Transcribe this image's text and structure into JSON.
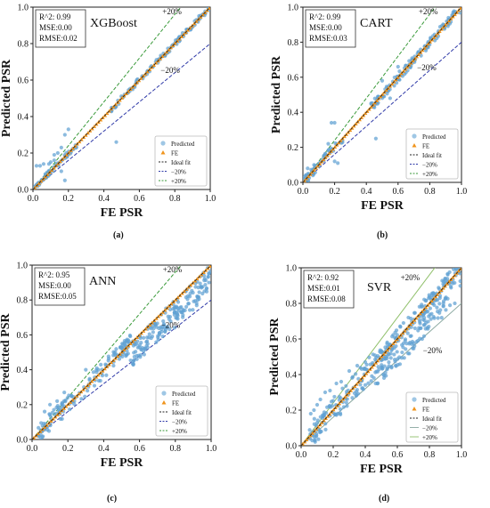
{
  "chart_data": [
    {
      "type": "scatter",
      "model": "XGBoost",
      "caption": "(a)",
      "stats": [
        "R^2: 0.99",
        "MSE:0.00",
        "RMSE:0.02"
      ],
      "xlabel": "FE PSR",
      "ylabel": "Predicted PSR",
      "xlim": [
        0,
        1
      ],
      "ylim": [
        0,
        1
      ],
      "xticks": [
        "0.0",
        "0.2",
        "0.4",
        "0.6",
        "0.8",
        "1.0"
      ],
      "yticks": [
        "0.0",
        "0.2",
        "0.4",
        "0.6",
        "0.8",
        "1.0"
      ],
      "band_labels": {
        "plus": "+20%",
        "minus": "−20%"
      },
      "legend": [
        "Predicted",
        "FE",
        "Ideal fit",
        "−20%",
        "+20%"
      ],
      "legend_position": "bottom-right",
      "grid": false,
      "spread": 0.015,
      "outliers": [
        [
          0.02,
          0.13
        ],
        [
          0.04,
          0.13
        ],
        [
          0.06,
          0.14
        ],
        [
          0.09,
          0.14
        ],
        [
          0.12,
          0.16
        ],
        [
          0.14,
          0.2
        ],
        [
          0.16,
          0.23
        ],
        [
          0.18,
          0.3
        ],
        [
          0.2,
          0.33
        ],
        [
          0.16,
          0.1
        ],
        [
          0.18,
          0.05
        ],
        [
          0.12,
          0.19
        ],
        [
          0.1,
          0.15
        ],
        [
          0.47,
          0.26
        ]
      ],
      "ranges": [
        [
          0.0,
          0.25,
          55
        ],
        [
          0.43,
          1.0,
          110
        ]
      ],
      "seed": 11
    },
    {
      "type": "scatter",
      "model": "CART",
      "caption": "(b)",
      "stats": [
        "R^2: 0.99",
        "MSE:0.00",
        "RMSE:0.03"
      ],
      "xlabel": "FE PSR",
      "ylabel": "Predicted PSR",
      "xlim": [
        0,
        1
      ],
      "ylim": [
        0,
        1
      ],
      "xticks": [
        "0.0",
        "0.2",
        "0.4",
        "0.6",
        "0.8",
        "1.0"
      ],
      "yticks": [
        "0.0",
        "0.2",
        "0.4",
        "0.6",
        "0.8",
        "1.0"
      ],
      "band_labels": {
        "plus": "+20%",
        "minus": "−20%"
      },
      "legend": [
        "Predicted",
        "FE",
        "Ideal fit",
        "−20%",
        "+20%"
      ],
      "legend_position": "bottom-right",
      "grid": false,
      "spread": 0.025,
      "outliers": [
        [
          0.18,
          0.34
        ],
        [
          0.2,
          0.34
        ],
        [
          0.16,
          0.22
        ],
        [
          0.2,
          0.12
        ],
        [
          0.22,
          0.11
        ],
        [
          0.46,
          0.25
        ],
        [
          0.5,
          0.58
        ],
        [
          0.6,
          0.66
        ],
        [
          0.55,
          0.48
        ],
        [
          0.07,
          0.1
        ],
        [
          0.03,
          0.08
        ]
      ],
      "ranges": [
        [
          0.0,
          0.25,
          55
        ],
        [
          0.43,
          1.0,
          120
        ]
      ],
      "seed": 23
    },
    {
      "type": "scatter",
      "model": "ANN",
      "caption": "(c)",
      "stats": [
        "R^2: 0.95",
        "MSE:0.00",
        "RMSE:0.05"
      ],
      "xlabel": "FE PSR",
      "ylabel": "Predicted PSR",
      "xlim": [
        0,
        1
      ],
      "ylim": [
        0,
        1
      ],
      "xticks": [
        "0.0",
        "0.2",
        "0.4",
        "0.6",
        "0.8",
        "1.0"
      ],
      "yticks": [
        "0.0",
        "0.2",
        "0.4",
        "0.6",
        "0.8",
        "1.0"
      ],
      "band_labels": {
        "plus": "+20%",
        "minus": "−20%"
      },
      "legend": [
        "Predicted",
        "FE",
        "Ideal fit",
        "−20%",
        "+20%"
      ],
      "legend_position": "bottom-right",
      "grid": false,
      "spread": 0.05,
      "outliers": [
        [
          0.07,
          0.16
        ],
        [
          0.1,
          0.2
        ],
        [
          0.14,
          0.22
        ],
        [
          0.18,
          0.27
        ],
        [
          0.22,
          0.25
        ],
        [
          0.3,
          0.4
        ],
        [
          0.37,
          0.4
        ]
      ],
      "ranges": [
        [
          0.03,
          0.45,
          90
        ],
        [
          0.45,
          1.0,
          230
        ]
      ],
      "seed": 37
    },
    {
      "type": "scatter",
      "model": "SVR",
      "caption": "(d)",
      "stats": [
        "R^2: 0.92",
        "MSE:0.01",
        "RMSE:0.08"
      ],
      "xlabel": "FE PSR",
      "ylabel": "Predicted PSR",
      "xlim": [
        0,
        1
      ],
      "ylim": [
        0,
        1
      ],
      "xticks": [
        "0.0",
        "0.2",
        "0.4",
        "0.6",
        "0.8",
        "1.0"
      ],
      "yticks": [
        "0.0",
        "0.2",
        "0.4",
        "0.6",
        "0.8",
        "1.0"
      ],
      "band_labels": {
        "plus": "+20%",
        "minus": "−20%"
      },
      "legend": [
        "Predicted",
        "FE",
        "Ideal fit",
        "−20%",
        "+20%"
      ],
      "legend_position": "bottom-right",
      "grid": false,
      "spread": 0.075,
      "outliers": [
        [
          0.06,
          0.18
        ],
        [
          0.08,
          0.2
        ],
        [
          0.1,
          0.23
        ],
        [
          0.12,
          0.26
        ],
        [
          0.15,
          0.3
        ],
        [
          0.18,
          0.31
        ],
        [
          0.22,
          0.35
        ],
        [
          0.25,
          0.36
        ],
        [
          0.3,
          0.42
        ],
        [
          0.35,
          0.45
        ],
        [
          0.4,
          0.47
        ]
      ],
      "ranges": [
        [
          0.05,
          0.45,
          110
        ],
        [
          0.45,
          1.0,
          260
        ]
      ],
      "seed": 53
    }
  ]
}
